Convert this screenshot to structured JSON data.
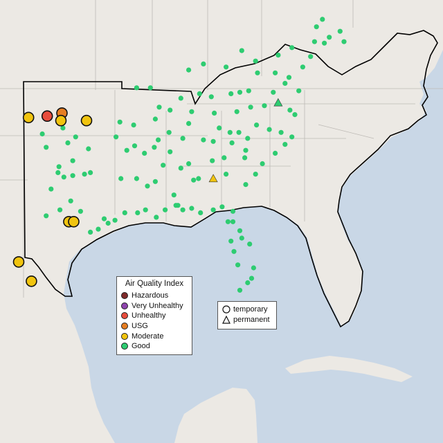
{
  "map": {
    "region": "Southeastern United States",
    "land_color": "#ece9e4",
    "water_color": "#c9d7e6",
    "outline_color": "#000000",
    "monitors": [
      {
        "lon": -103.1,
        "lat": 36.6,
        "category": "Moderate",
        "type": "temporary",
        "size": "large"
      },
      {
        "lon": -101.2,
        "lat": 36.7,
        "category": "Unhealthy",
        "type": "temporary",
        "size": "large"
      },
      {
        "lon": -99.7,
        "lat": 36.9,
        "category": "USG",
        "type": "temporary",
        "size": "large"
      },
      {
        "lon": -99.8,
        "lat": 36.4,
        "category": "Moderate",
        "type": "temporary",
        "size": "large"
      },
      {
        "lon": -97.2,
        "lat": 36.4,
        "category": "Moderate",
        "type": "temporary",
        "size": "large"
      },
      {
        "lon": -99.0,
        "lat": 29.6,
        "category": "Moderate",
        "type": "temporary",
        "size": "large"
      },
      {
        "lon": -98.5,
        "lat": 29.6,
        "category": "Moderate",
        "type": "temporary",
        "size": "large"
      },
      {
        "lon": -104.1,
        "lat": 26.9,
        "category": "Moderate",
        "type": "temporary",
        "size": "large"
      },
      {
        "lon": -102.8,
        "lat": 25.6,
        "category": "Moderate",
        "type": "temporary",
        "size": "large"
      },
      {
        "lon": -84.3,
        "lat": 32.5,
        "category": "Moderate",
        "type": "permanent",
        "size": "small"
      },
      {
        "lon": -77.7,
        "lat": 37.6,
        "category": "Good",
        "type": "permanent",
        "size": "small"
      }
    ],
    "good_monitors": [
      [
        -101.7,
        35.5
      ],
      [
        -99.6,
        35.9
      ],
      [
        -98.3,
        35.3
      ],
      [
        -99.1,
        34.9
      ],
      [
        -101.3,
        34.6
      ],
      [
        -97.0,
        34.5
      ],
      [
        -98.6,
        33.7
      ],
      [
        -100.0,
        33.3
      ],
      [
        -100.1,
        32.9
      ],
      [
        -99.5,
        32.6
      ],
      [
        -98.6,
        32.7
      ],
      [
        -97.4,
        32.8
      ],
      [
        -96.8,
        32.9
      ],
      [
        -100.8,
        31.8
      ],
      [
        -98.8,
        31.0
      ],
      [
        -99.9,
        30.4
      ],
      [
        -101.3,
        30.0
      ],
      [
        -97.8,
        30.3
      ],
      [
        -95.4,
        29.8
      ],
      [
        -95.0,
        29.5
      ],
      [
        -96.8,
        28.9
      ],
      [
        -96.0,
        29.1
      ],
      [
        -94.3,
        29.7
      ],
      [
        -93.3,
        30.2
      ],
      [
        -92.0,
        30.2
      ],
      [
        -91.2,
        30.4
      ],
      [
        -90.1,
        29.9
      ],
      [
        -89.2,
        30.4
      ],
      [
        -88.1,
        30.7
      ],
      [
        -87.4,
        30.4
      ],
      [
        -86.5,
        30.5
      ],
      [
        -85.6,
        30.2
      ],
      [
        -84.3,
        30.4
      ],
      [
        -83.4,
        30.6
      ],
      [
        -82.3,
        30.3
      ],
      [
        -82.8,
        29.6
      ],
      [
        -82.3,
        29.6
      ],
      [
        -81.6,
        29.0
      ],
      [
        -82.5,
        28.3
      ],
      [
        -81.4,
        28.5
      ],
      [
        -82.2,
        27.6
      ],
      [
        -80.6,
        28.1
      ],
      [
        -81.8,
        26.7
      ],
      [
        -80.2,
        26.5
      ],
      [
        -80.4,
        25.8
      ],
      [
        -80.8,
        25.5
      ],
      [
        -81.6,
        25.0
      ],
      [
        -81.0,
        32.1
      ],
      [
        -80.0,
        32.8
      ],
      [
        -79.3,
        33.5
      ],
      [
        -78.0,
        34.2
      ],
      [
        -77.0,
        34.8
      ],
      [
        -76.3,
        35.3
      ],
      [
        -77.4,
        35.6
      ],
      [
        -78.6,
        35.8
      ],
      [
        -79.9,
        36.1
      ],
      [
        -80.8,
        35.2
      ],
      [
        -81.7,
        35.6
      ],
      [
        -82.6,
        35.6
      ],
      [
        -83.7,
        35.9
      ],
      [
        -84.3,
        35.0
      ],
      [
        -85.3,
        35.1
      ],
      [
        -86.8,
        36.2
      ],
      [
        -87.4,
        35.2
      ],
      [
        -88.8,
        35.6
      ],
      [
        -89.9,
        35.1
      ],
      [
        -90.3,
        34.6
      ],
      [
        -91.3,
        34.2
      ],
      [
        -92.3,
        34.7
      ],
      [
        -93.1,
        34.4
      ],
      [
        -94.2,
        35.3
      ],
      [
        -93.8,
        36.3
      ],
      [
        -92.4,
        36.1
      ],
      [
        -90.2,
        36.5
      ],
      [
        -88.7,
        34.3
      ],
      [
        -89.4,
        33.4
      ],
      [
        -90.2,
        32.3
      ],
      [
        -91.0,
        32.0
      ],
      [
        -92.1,
        32.5
      ],
      [
        -93.7,
        32.5
      ],
      [
        -86.8,
        33.5
      ],
      [
        -85.8,
        32.5
      ],
      [
        -86.3,
        32.4
      ],
      [
        -87.6,
        33.2
      ],
      [
        -88.3,
        31.4
      ],
      [
        -87.9,
        30.7
      ],
      [
        -84.4,
        33.7
      ],
      [
        -83.2,
        33.9
      ],
      [
        -83.0,
        32.8
      ],
      [
        -81.1,
        33.9
      ],
      [
        -82.4,
        34.9
      ],
      [
        -81.0,
        34.4
      ],
      [
        -80.5,
        37.3
      ],
      [
        -81.9,
        37.0
      ],
      [
        -79.1,
        37.4
      ],
      [
        -78.2,
        38.3
      ],
      [
        -77.0,
        38.9
      ],
      [
        -76.5,
        37.1
      ],
      [
        -76.0,
        36.8
      ],
      [
        -75.6,
        38.4
      ],
      [
        -76.6,
        39.3
      ],
      [
        -78.0,
        39.6
      ],
      [
        -79.8,
        39.6
      ],
      [
        -80.7,
        38.4
      ],
      [
        -81.6,
        38.3
      ],
      [
        -82.5,
        38.2
      ],
      [
        -84.5,
        38.0
      ],
      [
        -85.7,
        38.2
      ],
      [
        -84.2,
        36.9
      ],
      [
        -86.5,
        37.0
      ],
      [
        -87.6,
        37.9
      ],
      [
        -88.7,
        37.1
      ],
      [
        -89.8,
        37.3
      ],
      [
        -90.7,
        38.6
      ],
      [
        -92.1,
        38.6
      ],
      [
        -86.8,
        39.8
      ],
      [
        -85.3,
        40.2
      ],
      [
        -83.0,
        40.0
      ],
      [
        -81.4,
        41.1
      ],
      [
        -80.0,
        40.4
      ],
      [
        -77.7,
        40.8
      ],
      [
        -76.3,
        41.3
      ],
      [
        -75.2,
        40.0
      ],
      [
        -74.4,
        40.7
      ],
      [
        -74.0,
        41.7
      ],
      [
        -73.0,
        41.6
      ],
      [
        -72.5,
        42.0
      ],
      [
        -73.8,
        42.7
      ],
      [
        -71.4,
        42.4
      ],
      [
        -71.0,
        41.7
      ],
      [
        -73.2,
        43.2
      ]
    ]
  },
  "aqi_legend": {
    "title": "Air Quality Index",
    "items": [
      {
        "label": "Hazardous",
        "color": "#7e2a2a"
      },
      {
        "label": "Very Unhealthy",
        "color": "#8e44ad"
      },
      {
        "label": "Unhealthy",
        "color": "#e74c3c"
      },
      {
        "label": "USG",
        "color": "#e67e22"
      },
      {
        "label": "Moderate",
        "color": "#f1c40f"
      },
      {
        "label": "Good",
        "color": "#2ecc71"
      }
    ]
  },
  "type_legend": {
    "items": [
      {
        "label": "temporary",
        "shape": "circle"
      },
      {
        "label": "permanent",
        "shape": "triangle"
      }
    ]
  }
}
